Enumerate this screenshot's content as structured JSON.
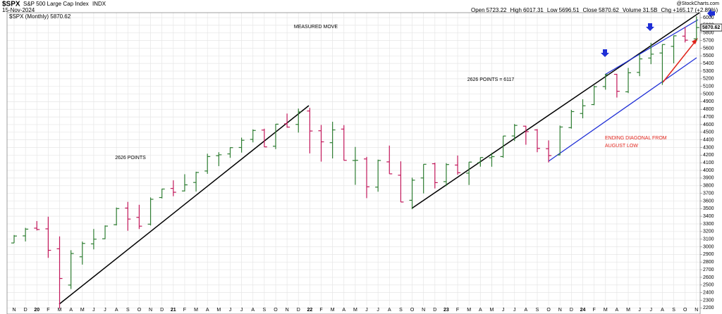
{
  "header": {
    "symbol": "$SPX",
    "name": "S&P 500 Large Cap Index",
    "exchange": "INDX",
    "date": "15-Nov-2024",
    "watermark": "@StockCharts.com",
    "stats": [
      {
        "label": "Open",
        "value": "5723.22"
      },
      {
        "label": "High",
        "value": "6017.31"
      },
      {
        "label": "Low",
        "value": "5696.51"
      },
      {
        "label": "Close",
        "value": "5870.62"
      },
      {
        "label": "Volume",
        "value": "31.5B"
      },
      {
        "label": "Chg",
        "value": "+165.17 (+2.89%)"
      }
    ]
  },
  "chart_data": {
    "type": "ohlc",
    "legend": "$SPX (Monthly) 5870.62",
    "last_price": 5870.62,
    "up_color": "#2e7d32",
    "down_color": "#c2185b",
    "categories": [
      "N",
      "D",
      "20",
      "F",
      "M",
      "A",
      "M",
      "J",
      "J",
      "A",
      "S",
      "O",
      "N",
      "D",
      "21",
      "F",
      "M",
      "A",
      "M",
      "J",
      "J",
      "A",
      "S",
      "O",
      "N",
      "D",
      "22",
      "F",
      "M",
      "A",
      "M",
      "J",
      "J",
      "A",
      "S",
      "O",
      "N",
      "D",
      "23",
      "F",
      "M",
      "A",
      "M",
      "J",
      "J",
      "A",
      "S",
      "O",
      "N",
      "D",
      "24",
      "F",
      "M",
      "A",
      "M",
      "J",
      "J",
      "A",
      "S",
      "O",
      "N"
    ],
    "open": [
      3050,
      3143,
      3244,
      3235,
      2974,
      2499,
      2869,
      3038,
      3105,
      3289,
      3507,
      3385,
      3296,
      3645,
      3764,
      3731,
      3842,
      3992,
      4193,
      4216,
      4300,
      4406,
      4528,
      4317,
      4610,
      4602,
      4778,
      4519,
      4363,
      4541,
      4130,
      4150,
      3781,
      4112,
      3937,
      3609,
      3901,
      4087,
      3853,
      4070,
      3964,
      4102,
      4166,
      4181,
      4451,
      4579,
      4530,
      4284,
      4202,
      4560,
      4745,
      4862,
      5098,
      5258,
      5029,
      5283,
      5471,
      5537,
      5624,
      5758,
      5723
    ],
    "high": [
      3154,
      3248,
      3337,
      3394,
      3136,
      2955,
      3068,
      3233,
      3280,
      3514,
      3588,
      3550,
      3646,
      3760,
      3870,
      3950,
      3983,
      4218,
      4238,
      4302,
      4429,
      4537,
      4546,
      4608,
      4744,
      4809,
      4819,
      4595,
      4637,
      4593,
      4307,
      4177,
      4141,
      4325,
      4119,
      3905,
      4080,
      4101,
      4095,
      4195,
      4110,
      4170,
      4231,
      4449,
      4607,
      4584,
      4541,
      4393,
      4587,
      4793,
      4931,
      5111,
      5264,
      5264,
      5342,
      5523,
      5670,
      5651,
      5767,
      5878,
      6017
    ],
    "low": [
      3050,
      3070,
      3214,
      2855,
      2192,
      2447,
      2767,
      2966,
      3101,
      3280,
      3210,
      3233,
      3279,
      3633,
      3662,
      3725,
      3723,
      3955,
      4056,
      4165,
      4233,
      4367,
      4306,
      4279,
      4560,
      4495,
      4223,
      4115,
      4157,
      4129,
      3811,
      3637,
      3721,
      3955,
      3585,
      3492,
      3699,
      3764,
      3794,
      3943,
      3809,
      4049,
      4048,
      4166,
      4385,
      4336,
      4238,
      4104,
      4197,
      4547,
      4682,
      4854,
      5057,
      4954,
      5012,
      5234,
      5391,
      5120,
      5402,
      5675,
      5696
    ],
    "close": [
      3141,
      3231,
      3226,
      2954,
      2585,
      2912,
      3044,
      3100,
      3271,
      3500,
      3363,
      3270,
      3622,
      3756,
      3714,
      3811,
      3973,
      4181,
      4204,
      4298,
      4395,
      4523,
      4308,
      4605,
      4567,
      4766,
      4516,
      4374,
      4530,
      4132,
      4132,
      3785,
      4130,
      3955,
      3586,
      3872,
      4080,
      3840,
      4077,
      3970,
      4109,
      4169,
      4180,
      4450,
      4589,
      4508,
      4288,
      4194,
      4568,
      4770,
      4846,
      5096,
      5254,
      5036,
      5278,
      5460,
      5522,
      5648,
      5762,
      5705,
      5870
    ],
    "ylim": [
      2120,
      6065
    ],
    "yticks": [
      2200,
      2300,
      2400,
      2500,
      2600,
      2700,
      2800,
      2900,
      3000,
      3100,
      3200,
      3300,
      3400,
      3500,
      3600,
      3700,
      3800,
      3900,
      4000,
      4100,
      4200,
      4300,
      4400,
      4500,
      4600,
      4700,
      4800,
      4900,
      5000,
      5100,
      5200,
      5300,
      5400,
      5500,
      5600,
      5700,
      5800,
      5900,
      6000
    ],
    "grid": true,
    "annotations": [
      "MEASURED MOVE",
      "2626 POINTS",
      "2626 POINTS = 6117",
      "ENDING DIAGONAL FROM",
      "AUGUST LOW"
    ]
  }
}
